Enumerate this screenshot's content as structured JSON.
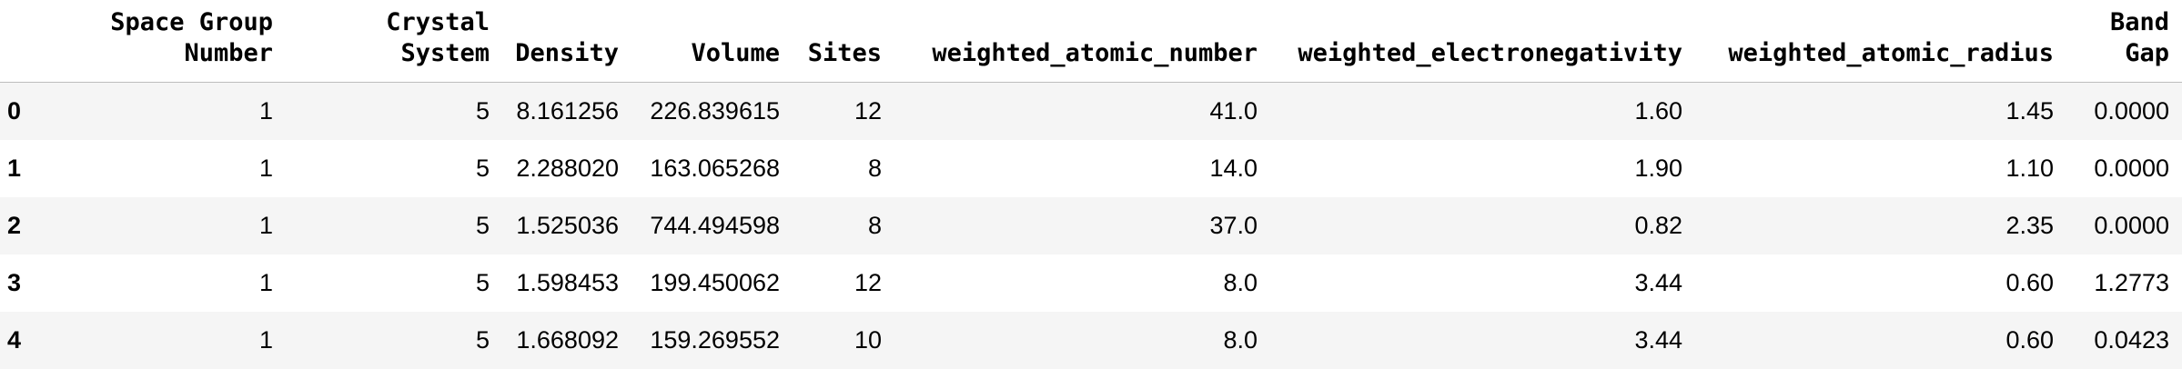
{
  "table": {
    "columns": [
      "Space Group Number",
      "Crystal System",
      "Density",
      "Volume",
      "Sites",
      "weighted_atomic_number",
      "weighted_electronegativity",
      "weighted_atomic_radius",
      "Band Gap"
    ],
    "index": [
      "0",
      "1",
      "2",
      "3",
      "4"
    ],
    "rows": [
      [
        "1",
        "5",
        "8.161256",
        "226.839615",
        "12",
        "41.0",
        "1.60",
        "1.45",
        "0.0000"
      ],
      [
        "1",
        "5",
        "2.288020",
        "163.065268",
        "8",
        "14.0",
        "1.90",
        "1.10",
        "0.0000"
      ],
      [
        "1",
        "5",
        "1.525036",
        "744.494598",
        "8",
        "37.0",
        "0.82",
        "2.35",
        "0.0000"
      ],
      [
        "1",
        "5",
        "1.598453",
        "199.450062",
        "12",
        "8.0",
        "3.44",
        "0.60",
        "1.2773"
      ],
      [
        "1",
        "5",
        "1.668092",
        "159.269552",
        "10",
        "8.0",
        "3.44",
        "0.60",
        "0.0423"
      ]
    ]
  }
}
